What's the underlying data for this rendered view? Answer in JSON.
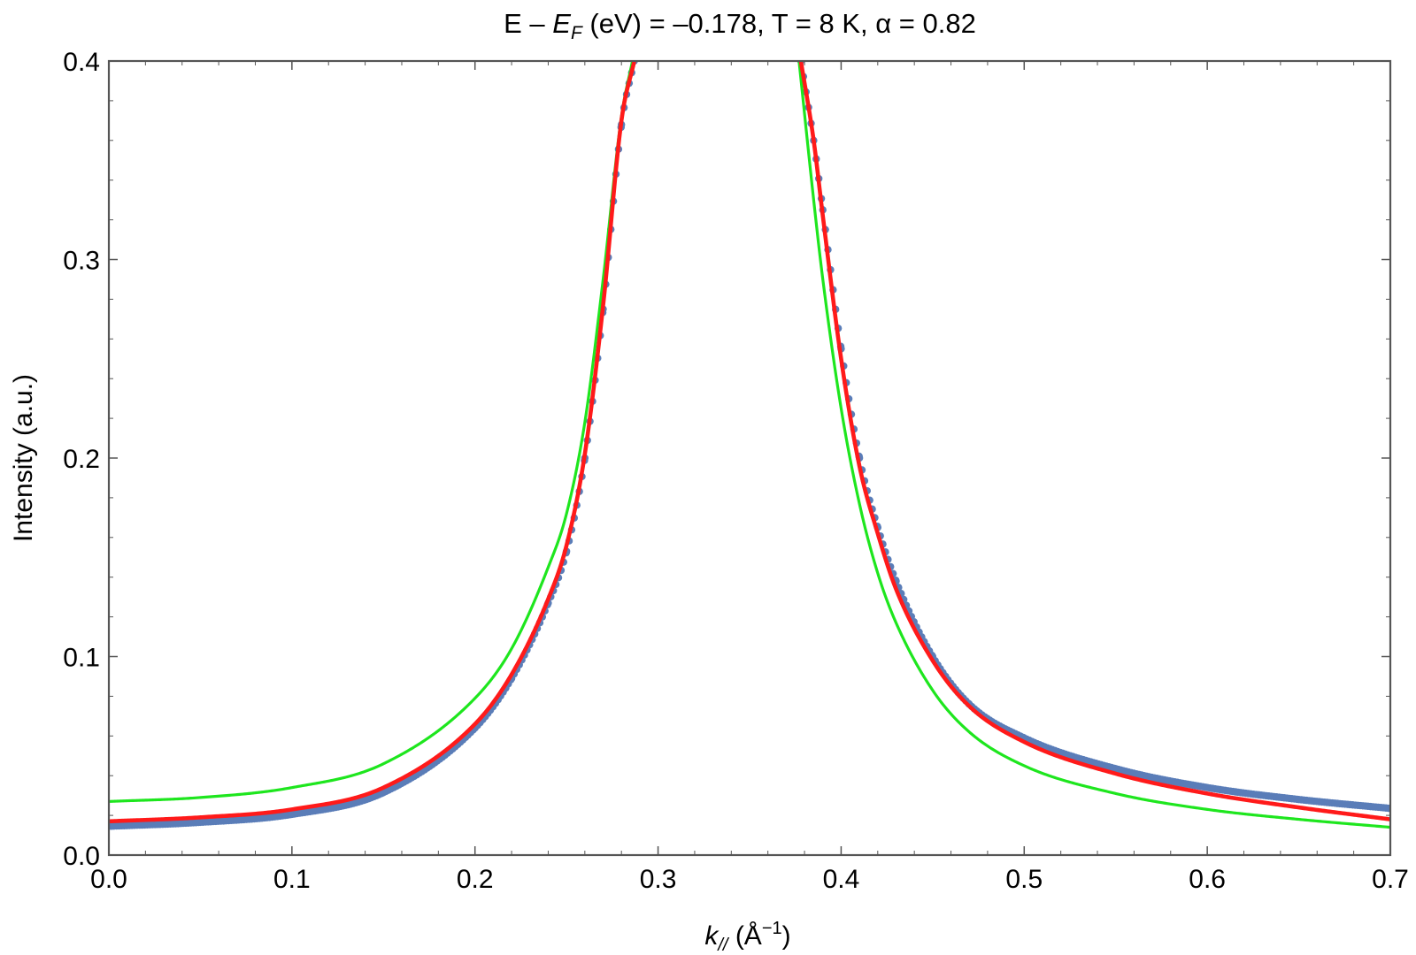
{
  "chart_data": {
    "type": "scatter",
    "title": "E – E_F (eV) = –0.178, T = 8 K, α = 0.82",
    "title_parts": {
      "prefix": "E – ",
      "E": "E",
      "F": "F",
      "suffix": " (eV) = –0.178, T = 8 K, α = 0.82"
    },
    "xlabel": "k// (Å−1)",
    "xlabel_parts": {
      "k": "k",
      "sub": "//",
      "unit_open": " (Å",
      "unit_exp": "−1",
      "unit_close": ")"
    },
    "ylabel": "Intensity (a.u.)",
    "xlim": [
      0.0,
      0.7
    ],
    "ylim": [
      0.0,
      0.4
    ],
    "x_ticks": [
      "0.0",
      "0.1",
      "0.2",
      "0.3",
      "0.4",
      "0.5",
      "0.6",
      "0.7"
    ],
    "y_ticks": [
      "0.0",
      "0.1",
      "0.2",
      "0.3",
      "0.4"
    ],
    "grid": false,
    "legend": "none",
    "colors": {
      "data": "#5a7db8",
      "fit": "#ff1a1a",
      "alt_fit": "#1ee61e",
      "frame": "#555555"
    },
    "series": [
      {
        "kind": "scatter",
        "x": [
          0.0,
          0.05,
          0.1,
          0.15,
          0.2,
          0.22,
          0.24,
          0.25,
          0.26,
          0.27,
          0.28,
          0.287,
          0.378,
          0.385,
          0.39,
          0.4,
          0.41,
          0.42,
          0.43,
          0.45,
          0.47,
          0.5,
          0.55,
          0.6,
          0.65,
          0.7
        ],
        "y": [
          0.0145,
          0.0165,
          0.0205,
          0.0315,
          0.064,
          0.089,
          0.127,
          0.153,
          0.2,
          0.275,
          0.368,
          0.4,
          0.4,
          0.36,
          0.325,
          0.255,
          0.2,
          0.165,
          0.138,
          0.1,
          0.076,
          0.059,
          0.0435,
          0.034,
          0.028,
          0.0235
        ]
      },
      {
        "kind": "line",
        "x": [
          0.0,
          0.05,
          0.1,
          0.15,
          0.2,
          0.22,
          0.24,
          0.25,
          0.26,
          0.27,
          0.28,
          0.287,
          0.378,
          0.385,
          0.39,
          0.4,
          0.41,
          0.42,
          0.43,
          0.45,
          0.47,
          0.5,
          0.55,
          0.6,
          0.65,
          0.7
        ],
        "y": [
          0.017,
          0.019,
          0.023,
          0.034,
          0.066,
          0.091,
          0.129,
          0.156,
          0.202,
          0.277,
          0.37,
          0.4,
          0.4,
          0.36,
          0.322,
          0.25,
          0.196,
          0.162,
          0.134,
          0.098,
          0.075,
          0.057,
          0.041,
          0.031,
          0.024,
          0.018
        ]
      },
      {
        "kind": "line",
        "x": [
          0.0,
          0.05,
          0.1,
          0.15,
          0.2,
          0.22,
          0.24,
          0.25,
          0.26,
          0.27,
          0.28,
          0.286,
          0.377,
          0.385,
          0.39,
          0.4,
          0.41,
          0.42,
          0.43,
          0.45,
          0.47,
          0.5,
          0.55,
          0.6,
          0.65,
          0.7
        ],
        "y": [
          0.027,
          0.029,
          0.034,
          0.046,
          0.079,
          0.104,
          0.145,
          0.172,
          0.218,
          0.29,
          0.372,
          0.4,
          0.4,
          0.33,
          0.29,
          0.225,
          0.177,
          0.142,
          0.117,
          0.083,
          0.062,
          0.045,
          0.031,
          0.023,
          0.018,
          0.014
        ]
      }
    ]
  }
}
